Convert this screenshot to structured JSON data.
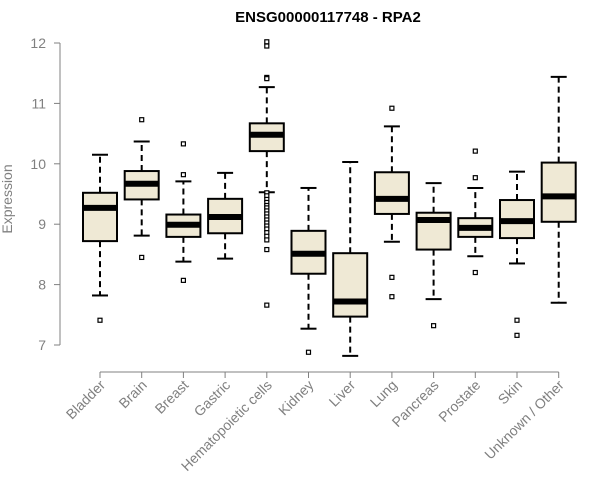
{
  "chart_data": {
    "type": "boxplot",
    "title": "ENSG00000117748 - RPA2",
    "ylabel": "Expression",
    "xlabel": "",
    "ylim": [
      6.8,
      12.1
    ],
    "yticks": [
      "7",
      "8",
      "9",
      "10",
      "11",
      "12"
    ],
    "grid": false,
    "legend": "none",
    "colors": {
      "box_fill": "#efe9d5",
      "stroke": "#000000",
      "tick_text": "#808080"
    },
    "categories": [
      "Bladder",
      "Brain",
      "Breast",
      "Gastric",
      "Hematopoietic cells",
      "Kidney",
      "Liver",
      "Lung",
      "Pancreas",
      "Prostate",
      "Skin",
      "Unknown / Other"
    ],
    "boxes": [
      {
        "category": "Bladder",
        "min": 7.82,
        "q1": 8.72,
        "median": 9.27,
        "q3": 9.52,
        "max": 10.15,
        "outliers": [
          7.41
        ]
      },
      {
        "category": "Brain",
        "min": 8.81,
        "q1": 9.41,
        "median": 9.67,
        "q3": 9.88,
        "max": 10.37,
        "outliers": [
          10.73,
          8.45
        ]
      },
      {
        "category": "Breast",
        "min": 8.38,
        "q1": 8.79,
        "median": 8.99,
        "q3": 9.16,
        "max": 9.71,
        "outliers": [
          10.33,
          9.82,
          8.07
        ]
      },
      {
        "category": "Gastric",
        "min": 8.43,
        "q1": 8.85,
        "median": 9.12,
        "q3": 9.42,
        "max": 9.85,
        "outliers": []
      },
      {
        "category": "Hematopoietic cells",
        "min": 9.53,
        "q1": 10.21,
        "median": 10.48,
        "q3": 10.67,
        "max": 11.27,
        "outliers": [
          12.02,
          11.95,
          11.43,
          11.41,
          9.52,
          9.47,
          9.41,
          9.36,
          9.31,
          9.27,
          9.22,
          9.17,
          9.12,
          9.07,
          9.02,
          8.97,
          8.92,
          8.86,
          8.8,
          8.74,
          8.58,
          7.66
        ]
      },
      {
        "category": "Kidney",
        "min": 7.27,
        "q1": 8.18,
        "median": 8.51,
        "q3": 8.89,
        "max": 9.6,
        "outliers": [
          6.88
        ]
      },
      {
        "category": "Liver",
        "min": 6.82,
        "q1": 7.47,
        "median": 7.72,
        "q3": 8.52,
        "max": 10.03,
        "outliers": []
      },
      {
        "category": "Lung",
        "min": 8.71,
        "q1": 9.17,
        "median": 9.42,
        "q3": 9.86,
        "max": 10.62,
        "outliers": [
          10.92,
          8.12,
          7.8
        ]
      },
      {
        "category": "Pancreas",
        "min": 7.76,
        "q1": 8.58,
        "median": 9.07,
        "q3": 9.19,
        "max": 9.68,
        "outliers": [
          7.32
        ]
      },
      {
        "category": "Prostate",
        "min": 8.47,
        "q1": 8.79,
        "median": 8.94,
        "q3": 9.1,
        "max": 9.6,
        "outliers": [
          10.21,
          9.77,
          8.2
        ]
      },
      {
        "category": "Skin",
        "min": 8.35,
        "q1": 8.77,
        "median": 9.05,
        "q3": 9.4,
        "max": 9.87,
        "outliers": [
          7.41,
          7.16
        ]
      },
      {
        "category": "Unknown / Other",
        "min": 7.7,
        "q1": 9.04,
        "median": 9.46,
        "q3": 10.02,
        "max": 11.44,
        "outliers": []
      }
    ]
  }
}
